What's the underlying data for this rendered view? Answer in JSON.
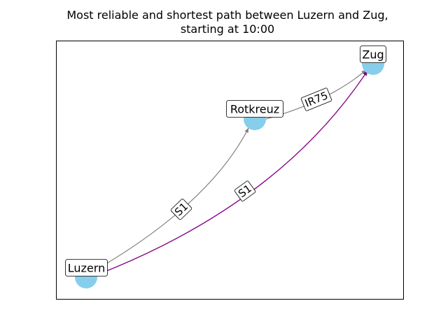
{
  "title": {
    "line1": "Most reliable and shortest path between Luzern and Zug,",
    "line2": "starting at 10:00"
  },
  "colors": {
    "node_fill": "#87ceeb",
    "edge_default": "#808080",
    "edge_highlight": "#800080"
  },
  "nodes": [
    {
      "id": "luzern",
      "label": "Luzern"
    },
    {
      "id": "rotkreuz",
      "label": "Rotkreuz"
    },
    {
      "id": "zug",
      "label": "Zug"
    }
  ],
  "edges": [
    {
      "id": "luzern-rotkreuz",
      "from": "Luzern",
      "to": "Rotkreuz",
      "label": "S1",
      "highlight": false
    },
    {
      "id": "rotkreuz-zug",
      "from": "Rotkreuz",
      "to": "Zug",
      "label": "IR75",
      "highlight": false
    },
    {
      "id": "luzern-zug",
      "from": "Luzern",
      "to": "Zug",
      "label": "S1",
      "highlight": true
    }
  ]
}
